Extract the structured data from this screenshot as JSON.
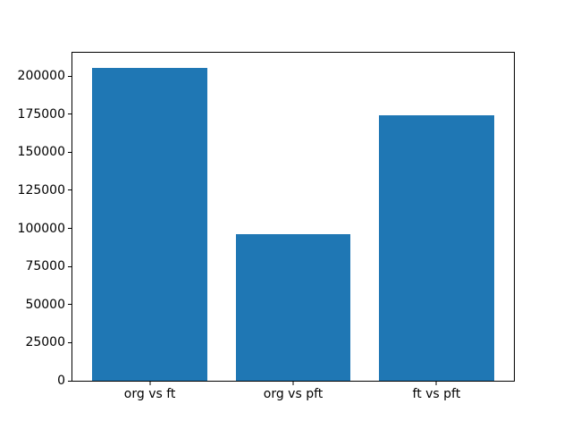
{
  "chart_data": {
    "type": "bar",
    "title": "",
    "xlabel": "",
    "ylabel": "",
    "categories": [
      "org vs ft",
      "org vs pft",
      "ft vs pft"
    ],
    "values": [
      205000,
      96000,
      174000
    ],
    "yticks": [
      0,
      25000,
      50000,
      75000,
      100000,
      125000,
      150000,
      175000,
      200000
    ],
    "ylim": [
      0,
      215250
    ],
    "xlim": [
      -0.54,
      2.54
    ],
    "bar_width": 0.8,
    "bar_color": "#1f77b4",
    "grid": false,
    "legend": null,
    "background_color": "#ffffff",
    "spine_color": "#000000",
    "text_color": "#000000"
  }
}
